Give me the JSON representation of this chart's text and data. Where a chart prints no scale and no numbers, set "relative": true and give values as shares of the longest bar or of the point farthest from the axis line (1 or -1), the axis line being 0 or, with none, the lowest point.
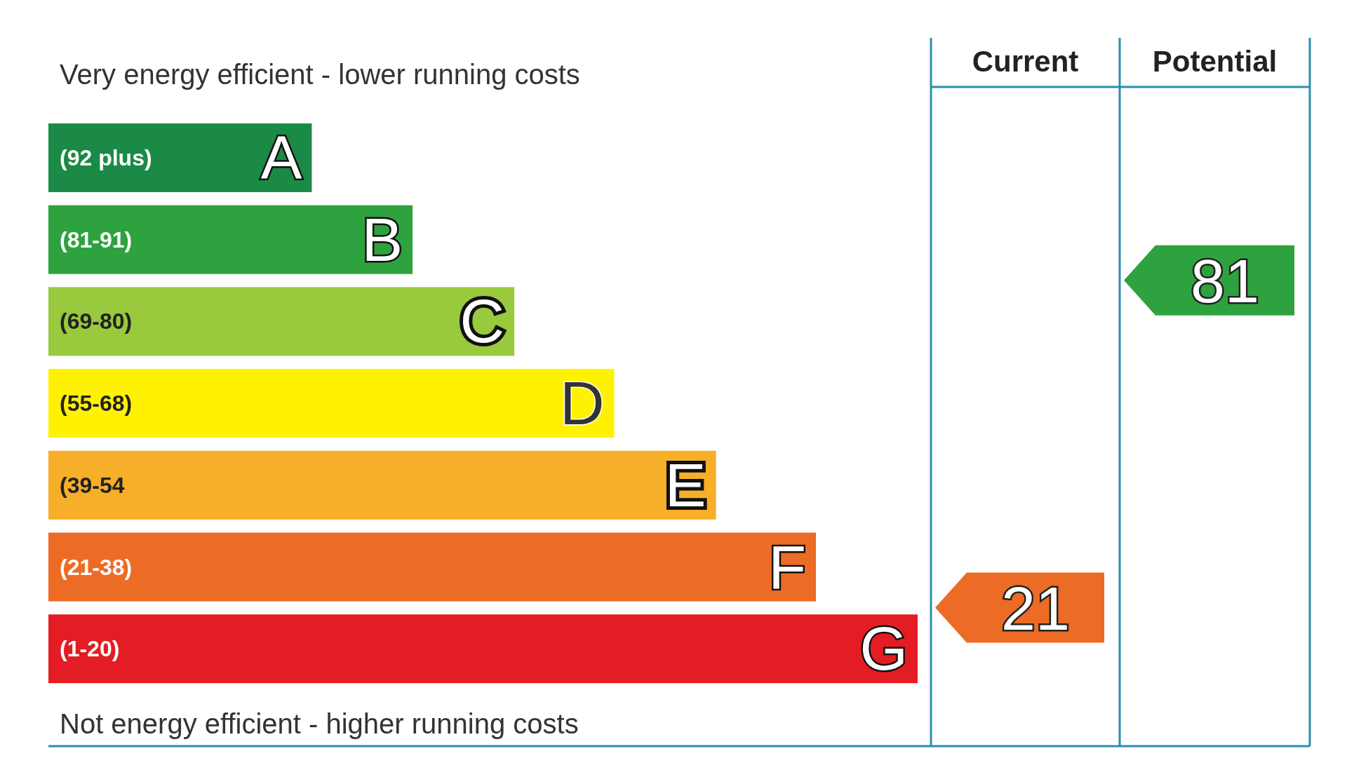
{
  "chart_data": {
    "type": "bar",
    "orientation": "horizontal",
    "relative": true,
    "categories": [
      "(92 plus)",
      "(81-91)",
      "(69-80)",
      "(55-68)",
      "(39-54",
      "(21-38)",
      "(1-20)"
    ],
    "values": [
      0.303,
      0.419,
      0.536,
      0.651,
      0.768,
      0.883,
      1
    ],
    "colors": [
      "#1a8a46",
      "#2ea23e",
      "#99c93c",
      "#fff200",
      "#f7ae28",
      "#ec6b25",
      "#e31d23"
    ],
    "annotations": [
      "Very energy efficient - lower running costs",
      "Not energy efficient - higher running costs",
      "Current",
      "Potential",
      "A",
      "B",
      "C",
      "D",
      "E",
      "F",
      "G",
      "21",
      "81"
    ]
  }
}
